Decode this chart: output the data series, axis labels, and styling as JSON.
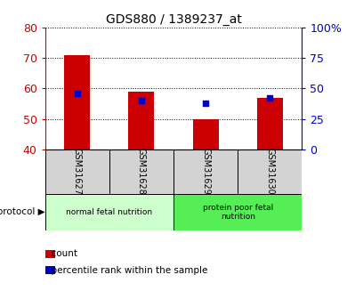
{
  "title": "GDS880 / 1389237_at",
  "samples": [
    "GSM31627",
    "GSM31628",
    "GSM31629",
    "GSM31630"
  ],
  "count_values": [
    71,
    59,
    50,
    57
  ],
  "percentile_values": [
    46.0,
    40.0,
    37.5,
    42.5
  ],
  "ylim_left": [
    40,
    80
  ],
  "ylim_right": [
    0,
    100
  ],
  "yticks_left": [
    40,
    50,
    60,
    70,
    80
  ],
  "yticks_right": [
    0,
    25,
    50,
    75,
    100
  ],
  "ytick_labels_right": [
    "0",
    "25",
    "50",
    "75",
    "100%"
  ],
  "bar_color": "#cc0000",
  "dot_color": "#0000cc",
  "groups": [
    {
      "label": "normal fetal nutrition",
      "samples": [
        0,
        1
      ],
      "color": "#ccffcc"
    },
    {
      "label": "protein poor fetal\nnutrition",
      "samples": [
        2,
        3
      ],
      "color": "#55ee55"
    }
  ],
  "group_label": "growth protocol",
  "legend_count_label": "count",
  "legend_pct_label": "percentile rank within the sample",
  "bar_width": 0.4,
  "axis_left_color": "#cc0000",
  "axis_right_color": "#0000cc",
  "sample_bg_color": "#d3d3d3"
}
